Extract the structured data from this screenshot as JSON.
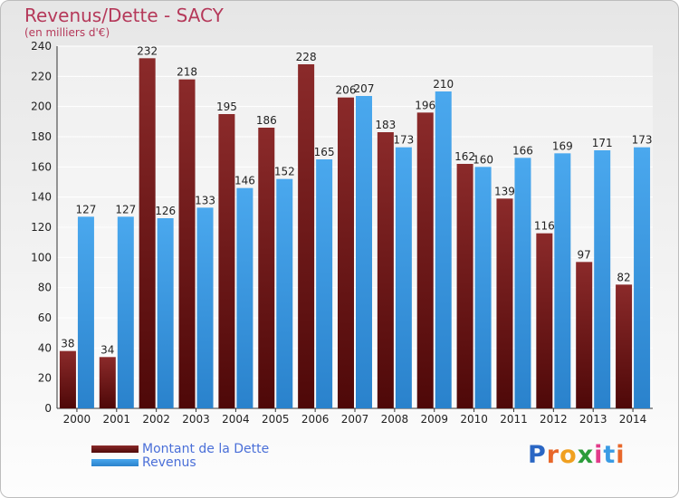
{
  "chart_data": {
    "type": "bar",
    "title": "Revenus/Dette - SACY",
    "subtitle": "(en milliers d'€)",
    "categories": [
      "2000",
      "2001",
      "2002",
      "2003",
      "2004",
      "2005",
      "2006",
      "2007",
      "2008",
      "2009",
      "2010",
      "2011",
      "2012",
      "2013",
      "2014"
    ],
    "series": [
      {
        "name": "Montant de la Dette",
        "values": [
          38,
          34,
          232,
          218,
          195,
          186,
          228,
          206,
          183,
          196,
          162,
          139,
          116,
          97,
          82
        ],
        "color": "#7a1a1a"
      },
      {
        "name": "Revenus",
        "values": [
          127,
          127,
          126,
          133,
          146,
          152,
          165,
          207,
          173,
          210,
          160,
          166,
          169,
          171,
          173
        ],
        "color": "#3a9be4"
      }
    ],
    "ylim": [
      0,
      240
    ],
    "yticks": [
      0,
      20,
      40,
      60,
      80,
      100,
      120,
      140,
      160,
      180,
      200,
      220,
      240
    ],
    "grid": true,
    "legend": "bottom-left"
  },
  "logo": {
    "text": "Proxiti",
    "letter_colors": [
      "#2a66c4",
      "#e8672a",
      "#f0a020",
      "#2b9c3a",
      "#e23b8a",
      "#3a9be4",
      "#e8672a"
    ]
  }
}
